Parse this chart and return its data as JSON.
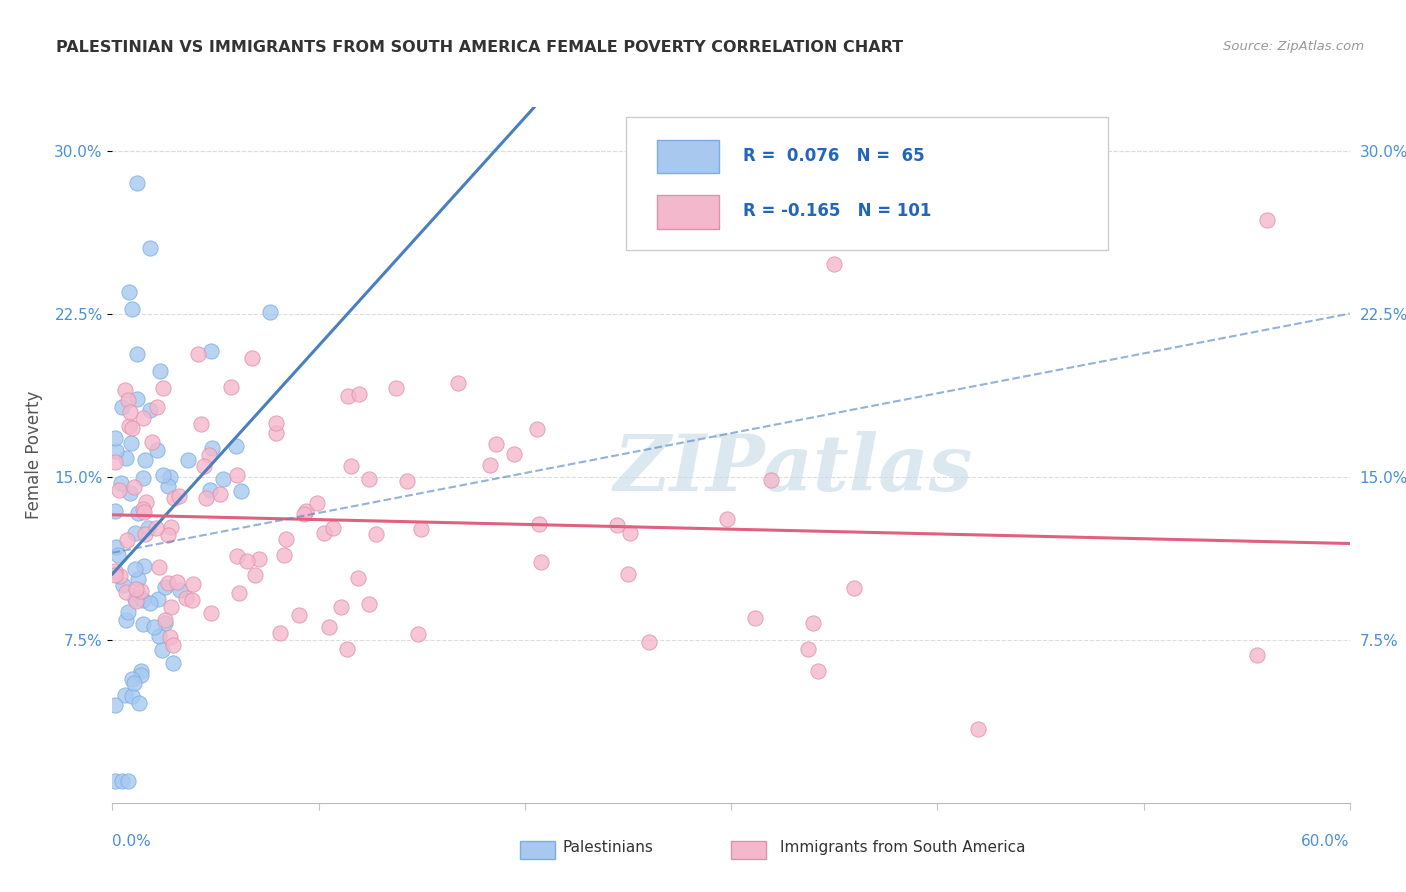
{
  "title": "PALESTINIAN VS IMMIGRANTS FROM SOUTH AMERICA FEMALE POVERTY CORRELATION CHART",
  "source": "Source: ZipAtlas.com",
  "ylabel": "Female Poverty",
  "xlim": [
    0.0,
    0.6
  ],
  "ylim": [
    0.0,
    0.32
  ],
  "ytick_values": [
    0.075,
    0.15,
    0.225,
    0.3
  ],
  "ytick_labels": [
    "7.5%",
    "15.0%",
    "22.5%",
    "30.0%"
  ],
  "color_blue_fill": "#a8c8f0",
  "color_blue_edge": "#7aaee0",
  "color_pink_fill": "#f4b8cc",
  "color_pink_edge": "#e090aa",
  "color_blue_line": "#4a7fc0",
  "color_pink_line": "#e06080",
  "watermark": "ZIPatlas",
  "grid_color": "#dddddd",
  "legend_line1": "R =  0.076   N =  65",
  "legend_line2": "R = -0.165   N = 101"
}
